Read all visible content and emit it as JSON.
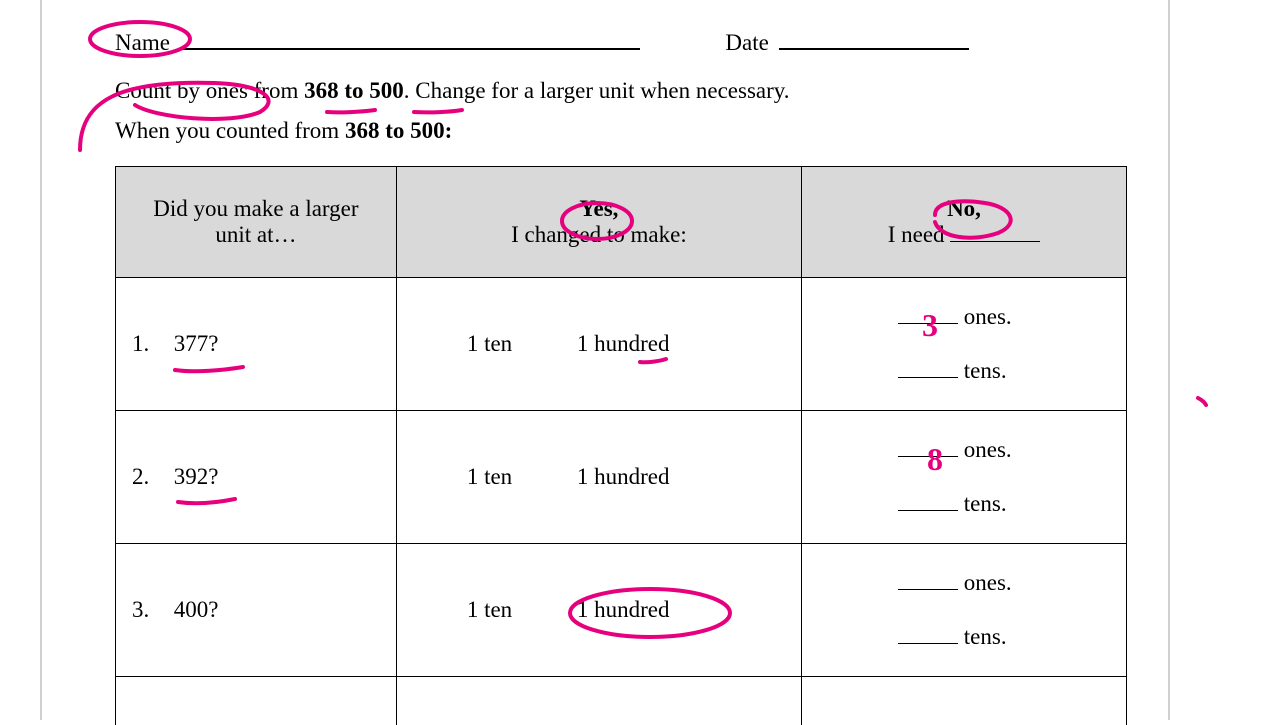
{
  "colors": {
    "annotation": "#e6007e",
    "header_bg": "#d9d9d9",
    "border": "#000000",
    "page_rule": "#d0d0d0"
  },
  "header": {
    "name_label": "Name",
    "date_label": "Date"
  },
  "instruction": {
    "pre": "Count by ones from ",
    "range": "368 to 500",
    "post": ".  Change for a larger unit when necessary."
  },
  "instruction2": {
    "pre": "When you counted from ",
    "range": "368 to 500:"
  },
  "table": {
    "col1_line1": "Did you make a larger",
    "col1_line2": "unit at…",
    "col2_line1": "Yes,",
    "col2_line2": "I changed to make:",
    "col3_line1": "No,",
    "col3_line2_pre": "I need ",
    "yes_opt1": "1 ten",
    "yes_opt2": "1 hundred",
    "ones_label": " ones.",
    "tens_label": " tens.",
    "rows": [
      {
        "num": "1.",
        "val": "377?",
        "ones_ans": "3",
        "tens_ans": ""
      },
      {
        "num": "2.",
        "val": "392?",
        "ones_ans": "8",
        "tens_ans": ""
      },
      {
        "num": "3.",
        "val": "400?",
        "ones_ans": "",
        "tens_ans": ""
      }
    ]
  }
}
